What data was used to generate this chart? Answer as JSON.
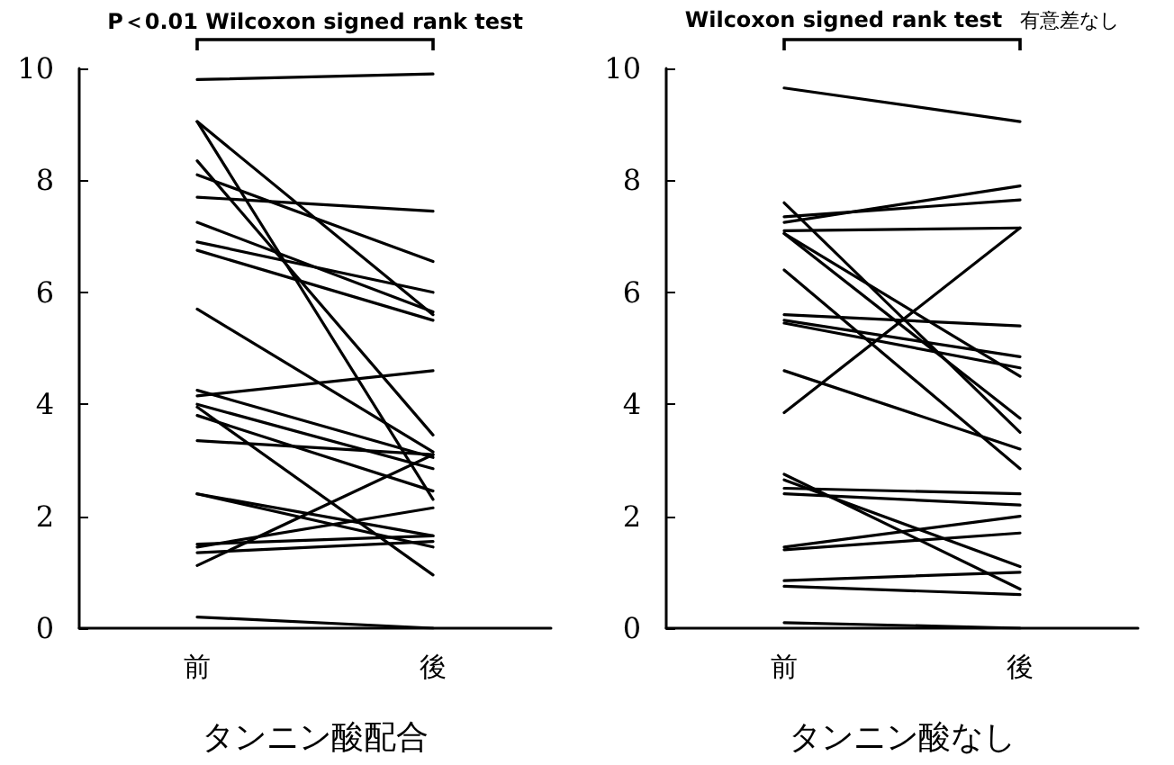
{
  "chart_data": [
    {
      "type": "line",
      "xlabel": "タンニン酸配合",
      "annotations": [
        "P＜0.01 Wilcoxon signed rank test"
      ],
      "categories": [
        "前",
        "後"
      ],
      "ylim": [
        0,
        10
      ],
      "yticks": [
        0,
        2,
        4,
        6,
        8,
        10
      ],
      "grid": false,
      "marker": "none",
      "line_style": "solid",
      "series": [
        {
          "color": "#000000",
          "values": [
            9.8,
            9.9
          ]
        },
        {
          "color": "#000000",
          "values": [
            9.05,
            5.6
          ]
        },
        {
          "color": "#000000",
          "values": [
            9.05,
            2.3
          ]
        },
        {
          "color": "#000000",
          "values": [
            8.35,
            3.45
          ]
        },
        {
          "color": "#000000",
          "values": [
            8.1,
            6.55
          ]
        },
        {
          "color": "#000000",
          "values": [
            7.7,
            7.45
          ]
        },
        {
          "color": "#000000",
          "values": [
            7.25,
            5.65
          ]
        },
        {
          "color": "#000000",
          "values": [
            6.9,
            6.0
          ]
        },
        {
          "color": "#000000",
          "values": [
            6.75,
            5.5
          ]
        },
        {
          "color": "#000000",
          "values": [
            5.7,
            3.15
          ]
        },
        {
          "color": "#000000",
          "values": [
            4.25,
            3.05
          ]
        },
        {
          "color": "#000000",
          "values": [
            4.15,
            4.6
          ]
        },
        {
          "color": "#000000",
          "values": [
            4.0,
            2.85
          ]
        },
        {
          "color": "#000000",
          "values": [
            3.95,
            0.95
          ]
        },
        {
          "color": "#000000",
          "values": [
            3.8,
            2.45
          ]
        },
        {
          "color": "#000000",
          "values": [
            3.35,
            3.1
          ]
        },
        {
          "color": "#000000",
          "values": [
            2.4,
            1.65
          ]
        },
        {
          "color": "#000000",
          "values": [
            2.4,
            1.45
          ]
        },
        {
          "color": "#000000",
          "values": [
            1.5,
            1.65
          ]
        },
        {
          "color": "#000000",
          "values": [
            1.45,
            2.15
          ]
        },
        {
          "color": "#000000",
          "values": [
            1.35,
            1.55
          ]
        },
        {
          "color": "#000000",
          "values": [
            1.12,
            3.1
          ]
        },
        {
          "color": "#000000",
          "values": [
            0.2,
            0.0
          ]
        }
      ]
    },
    {
      "type": "line",
      "xlabel": "タンニン酸なし",
      "annotations": [
        "Wilcoxon signed rank test",
        "有意差なし"
      ],
      "categories": [
        "前",
        "後"
      ],
      "ylim": [
        0,
        10
      ],
      "yticks": [
        0,
        2,
        4,
        6,
        8,
        10
      ],
      "grid": false,
      "marker": "none",
      "line_style": "solid",
      "series": [
        {
          "color": "#000000",
          "values": [
            9.65,
            9.05
          ]
        },
        {
          "color": "#000000",
          "values": [
            7.35,
            7.65
          ]
        },
        {
          "color": "#000000",
          "values": [
            7.25,
            7.9
          ]
        },
        {
          "color": "#000000",
          "values": [
            7.1,
            7.15
          ]
        },
        {
          "color": "#000000",
          "values": [
            3.85,
            7.15
          ]
        },
        {
          "color": "#000000",
          "values": [
            7.6,
            3.5
          ]
        },
        {
          "color": "#000000",
          "values": [
            7.05,
            4.5
          ]
        },
        {
          "color": "#000000",
          "values": [
            7.05,
            3.75
          ]
        },
        {
          "color": "#000000",
          "values": [
            6.4,
            2.85
          ]
        },
        {
          "color": "#000000",
          "values": [
            5.6,
            5.4
          ]
        },
        {
          "color": "#000000",
          "values": [
            5.5,
            4.85
          ]
        },
        {
          "color": "#000000",
          "values": [
            5.45,
            4.65
          ]
        },
        {
          "color": "#000000",
          "values": [
            4.6,
            3.2
          ]
        },
        {
          "color": "#000000",
          "values": [
            2.75,
            0.7
          ]
        },
        {
          "color": "#000000",
          "values": [
            2.65,
            1.1
          ]
        },
        {
          "color": "#000000",
          "values": [
            2.5,
            2.4
          ]
        },
        {
          "color": "#000000",
          "values": [
            2.4,
            2.2
          ]
        },
        {
          "color": "#000000",
          "values": [
            1.45,
            2.0
          ]
        },
        {
          "color": "#000000",
          "values": [
            1.4,
            1.7
          ]
        },
        {
          "color": "#000000",
          "values": [
            0.85,
            1.0
          ]
        },
        {
          "color": "#000000",
          "values": [
            0.75,
            0.6
          ]
        },
        {
          "color": "#000000",
          "values": [
            0.1,
            0.0
          ]
        }
      ]
    }
  ]
}
